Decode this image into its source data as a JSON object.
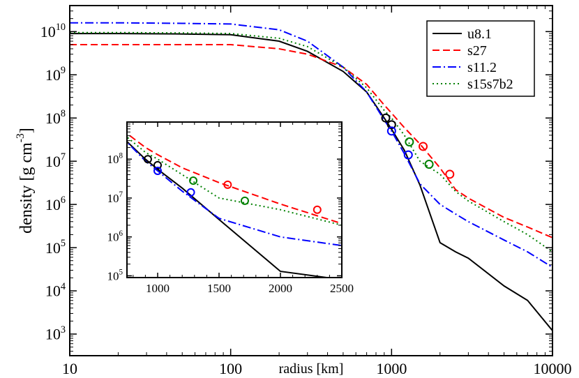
{
  "chart_data": {
    "type": "line",
    "xlabel": "radius [km]",
    "ylabel": "density [g cm^{-3}]",
    "xscale": "log",
    "yscale": "log",
    "xlim": [
      10,
      10000
    ],
    "xticks": [
      10,
      100,
      1000,
      10000
    ],
    "ylim": [
      316,
      40000000000
    ],
    "yticks": [
      {
        "value": 1000,
        "label": "10^{3}"
      },
      {
        "value": 10000,
        "label": "10^{4}"
      },
      {
        "value": 100000,
        "label": "10^{5}"
      },
      {
        "value": 1000000,
        "label": "10^{6}"
      },
      {
        "value": 10000000,
        "label": "10^{7}"
      },
      {
        "value": 100000000,
        "label": "10^{8}"
      },
      {
        "value": 1000000000,
        "label": "10^{9}"
      },
      {
        "value": 10000000000,
        "label": "10^{10}"
      }
    ],
    "legend": "upper right",
    "x": [
      10,
      20,
      50,
      100,
      200,
      300,
      500,
      700,
      900,
      1000,
      1200,
      1500,
      2000,
      2500,
      3000,
      5000,
      7000,
      10000
    ],
    "series": [
      {
        "name": "u8.1",
        "color": "#000000",
        "dash": "solid",
        "values": [
          9000000000,
          9000000000,
          8800000000,
          8500000000,
          6000000000,
          3500000000,
          1200000000,
          400000000,
          100000000,
          55000000,
          18000000,
          2800000,
          130000,
          80000,
          57000,
          13000,
          6000,
          1200
        ]
      },
      {
        "name": "s27",
        "color": "#ff0000",
        "dash": "dashed",
        "values": [
          5000000000,
          5000000000,
          5000000000,
          5000000000,
          4000000000,
          3000000000,
          1500000000,
          600000000,
          200000000,
          130000000,
          60000000,
          25000000,
          7000000,
          2200000,
          1400000,
          500000,
          300000,
          170000
        ]
      },
      {
        "name": "s11.2",
        "color": "#0000ff",
        "dash": "dashdot",
        "values": [
          16000000000,
          16000000000,
          15500000000,
          15000000000,
          11000000000,
          6000000000,
          1500000000,
          400000000,
          90000000,
          50000000,
          15000000,
          3000000,
          1000000,
          600000,
          400000,
          150000,
          80000,
          35000
        ]
      },
      {
        "name": "s15s7b2",
        "color": "#008000",
        "dash": "dotted",
        "values": [
          9500000000,
          9500000000,
          9300000000,
          9000000000,
          7000000000,
          4500000000,
          1500000000,
          500000000,
          150000000,
          100000000,
          40000000,
          10000000,
          5000000,
          2000000,
          1200000,
          400000,
          200000,
          80000
        ]
      }
    ],
    "markers": [
      {
        "color": "#000000",
        "x": [
          920,
          1000
        ],
        "values": [
          100000000,
          70000000
        ]
      },
      {
        "color": "#0000ff",
        "x": [
          1000,
          1270
        ],
        "values": [
          50000000,
          14000000
        ]
      },
      {
        "color": "#008000",
        "x": [
          1290,
          1710
        ],
        "values": [
          28000000,
          8500000
        ]
      },
      {
        "color": "#ff0000",
        "x": [
          1570,
          2300
        ],
        "values": [
          22000000,
          5000000
        ]
      }
    ],
    "inset": {
      "xscale": "linear",
      "yscale": "log",
      "xlim": [
        750,
        2500
      ],
      "xticks": [
        1000,
        1500,
        2000,
        2500
      ],
      "ylim": [
        90000,
        900000000
      ],
      "yticks": [
        {
          "value": 100000,
          "label": "10^{5}"
        },
        {
          "value": 1000000,
          "label": "10^{6}"
        },
        {
          "value": 10000000,
          "label": "10^{7}"
        },
        {
          "value": 100000000,
          "label": "10^{8}"
        }
      ]
    }
  }
}
